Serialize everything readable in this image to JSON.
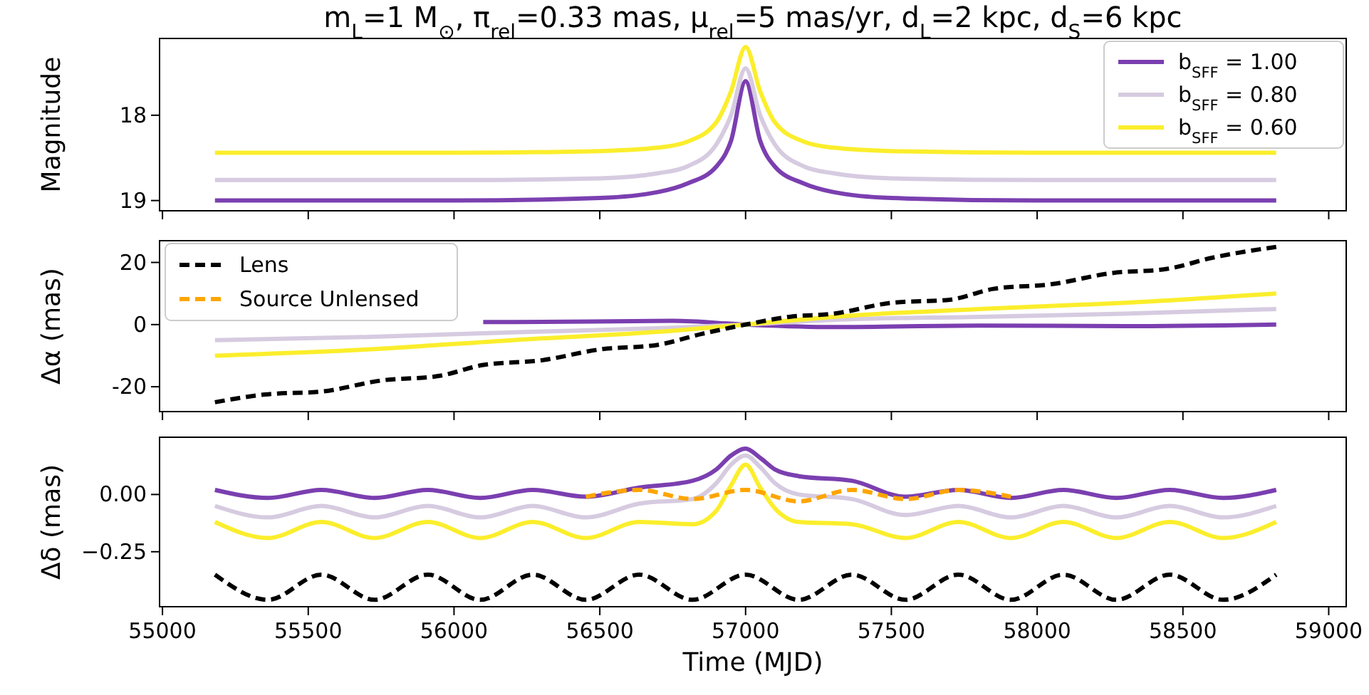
{
  "chart_data": [
    {
      "type": "line",
      "title": "m$_{L}$=1 M$_{⊙}$, π$_{rel}$=0.33 mas, μ$_{rel}$=5 mas/yr, d$_{L}$=2 kpc, d$_{S}$=6 kpc",
      "ylabel": "Magnitude",
      "xlim": [
        54990,
        59060
      ],
      "xticks": [
        55000,
        55500,
        56000,
        56500,
        57000,
        57500,
        58000,
        58500,
        59000
      ],
      "ylim": [
        19.12,
        17.1
      ],
      "yticks": [
        18,
        19
      ],
      "tick_labels": "y",
      "legend": "top right",
      "series": [
        {
          "name": "b$_{SFF}$ = 1.00",
          "color": "#7b3fb0",
          "x": [
            55180,
            56000,
            56500,
            56700,
            56800,
            56900,
            56950,
            57000,
            57050,
            57100,
            57200,
            57300,
            57500,
            58000,
            58820
          ],
          "values": [
            19.0,
            19.0,
            18.97,
            18.9,
            18.8,
            18.6,
            18.3,
            17.6,
            18.3,
            18.6,
            18.8,
            18.9,
            18.97,
            19.0,
            19.0
          ]
        },
        {
          "name": "b$_{SFF}$ = 0.80",
          "color": "#d6cbe0",
          "x": [
            55180,
            56000,
            56500,
            56700,
            56800,
            56900,
            56950,
            57000,
            57050,
            57100,
            57200,
            57300,
            57500,
            58000,
            58820
          ],
          "values": [
            18.76,
            18.76,
            18.74,
            18.68,
            18.6,
            18.34,
            18.0,
            17.45,
            18.0,
            18.34,
            18.6,
            18.68,
            18.74,
            18.76,
            18.76
          ]
        },
        {
          "name": "b$_{SFF}$ = 0.60",
          "color": "#fbee2c",
          "x": [
            55180,
            56000,
            56500,
            56700,
            56800,
            56900,
            56950,
            57000,
            57050,
            57100,
            57200,
            57300,
            57500,
            58000,
            58820
          ],
          "values": [
            18.44,
            18.44,
            18.42,
            18.38,
            18.31,
            18.08,
            17.72,
            17.2,
            17.72,
            18.08,
            18.31,
            18.38,
            18.42,
            18.44,
            18.44
          ]
        }
      ]
    },
    {
      "type": "line",
      "ylabel": "Δα (mas)",
      "xlim": [
        54990,
        59060
      ],
      "xticks": [
        55000,
        55500,
        56000,
        56500,
        57000,
        57500,
        58000,
        58500,
        59000
      ],
      "ylim": [
        -28,
        27
      ],
      "yticks": [
        -20,
        0,
        20
      ],
      "tick_labels": "y",
      "legend": "top left",
      "series": [
        {
          "color": "#7b3fb0",
          "x": [
            56100,
            56200,
            56750,
            57000,
            57300,
            57800,
            58300,
            58820
          ],
          "values": [
            0.8,
            0.8,
            1.2,
            0,
            -0.8,
            -0.3,
            -0.5,
            0
          ]
        },
        {
          "color": "#d6cbe0",
          "x": [
            55180,
            55700,
            56200,
            56750,
            57000,
            57300,
            57800,
            58300,
            58820
          ],
          "values": [
            -5,
            -4,
            -2.5,
            -1,
            0,
            1.5,
            2.5,
            3.5,
            5
          ]
        },
        {
          "color": "#fbee2c",
          "x": [
            55180,
            55700,
            56200,
            56750,
            57000,
            57300,
            57800,
            58300,
            58820
          ],
          "values": [
            -10,
            -8,
            -5,
            -2,
            0,
            2.5,
            5,
            7,
            10
          ]
        },
        {
          "name": "Lens",
          "color": "#000000",
          "line_style": "dashed",
          "x": [
            55180,
            55350,
            55550,
            55750,
            55950,
            56100,
            56300,
            56500,
            56700,
            56850,
            57000,
            57150,
            57300,
            57500,
            57700,
            57850,
            58050,
            58250,
            58450,
            58600,
            58820
          ],
          "values": [
            -25,
            -22.5,
            -21.5,
            -18,
            -16.5,
            -13,
            -11.5,
            -8,
            -6.5,
            -3,
            0,
            2.5,
            3.5,
            7,
            8,
            11.5,
            13,
            16.5,
            18,
            21.5,
            25
          ]
        },
        {
          "name": "Source Unlensed",
          "color": "#ffa500",
          "line_style": "dashed"
        }
      ]
    },
    {
      "type": "line",
      "ylabel": "Δδ (mas)",
      "xlabel": "Time (MJD)",
      "xlim": [
        54990,
        59060
      ],
      "xticks": [
        55000,
        55500,
        56000,
        56500,
        57000,
        57500,
        58000,
        58500,
        59000
      ],
      "ylim": [
        -0.49,
        0.25
      ],
      "yticks": [
        {
          "value": 0,
          "label": "0.00"
        },
        {
          "value": -0.25,
          "label": "−0.25"
        }
      ],
      "series": [
        {
          "color": "#7b3fb0",
          "x": [
            55180,
            55362,
            55545,
            55727,
            55910,
            56090,
            56270,
            56452,
            56635,
            56818,
            56900,
            56950,
            57000,
            57050,
            57100,
            57182,
            57365,
            57548,
            57730,
            57910,
            58090,
            58272,
            58455,
            58638,
            58820
          ],
          "values": [
            0.02,
            -0.015,
            0.02,
            -0.015,
            0.02,
            -0.015,
            0.02,
            -0.01,
            0.03,
            0.06,
            0.11,
            0.17,
            0.2,
            0.16,
            0.11,
            0.08,
            0.06,
            -0.01,
            0.02,
            -0.015,
            0.02,
            -0.015,
            0.02,
            -0.015,
            0.02
          ]
        },
        {
          "color": "#d6cbe0",
          "x": [
            55180,
            55362,
            55545,
            55727,
            55910,
            56090,
            56270,
            56452,
            56635,
            56818,
            56900,
            56950,
            57000,
            57050,
            57100,
            57182,
            57365,
            57548,
            57730,
            57910,
            58090,
            58272,
            58455,
            58638,
            58820
          ],
          "values": [
            -0.05,
            -0.1,
            -0.05,
            -0.1,
            -0.05,
            -0.1,
            -0.05,
            -0.1,
            -0.04,
            -0.02,
            0.05,
            0.13,
            0.17,
            0.12,
            0.05,
            0.0,
            -0.02,
            -0.09,
            -0.05,
            -0.1,
            -0.05,
            -0.1,
            -0.05,
            -0.1,
            -0.05
          ]
        },
        {
          "color": "#fbee2c",
          "x": [
            55180,
            55362,
            55545,
            55727,
            55910,
            56090,
            56270,
            56452,
            56635,
            56818,
            56900,
            56950,
            57000,
            57050,
            57100,
            57182,
            57365,
            57548,
            57730,
            57910,
            58090,
            58272,
            58455,
            58638,
            58820
          ],
          "values": [
            -0.12,
            -0.19,
            -0.12,
            -0.19,
            -0.12,
            -0.19,
            -0.12,
            -0.19,
            -0.12,
            -0.13,
            -0.07,
            0.04,
            0.13,
            0.03,
            -0.06,
            -0.12,
            -0.13,
            -0.19,
            -0.12,
            -0.19,
            -0.12,
            -0.19,
            -0.12,
            -0.19,
            -0.12
          ]
        },
        {
          "color": "#ffa500",
          "line_style": "dashed",
          "x": [
            56452,
            56635,
            56818,
            57000,
            57182,
            57365,
            57548,
            57730,
            57910
          ],
          "values": [
            -0.01,
            0.02,
            -0.02,
            0.02,
            -0.03,
            0.02,
            -0.02,
            0.02,
            -0.01
          ]
        },
        {
          "color": "#000000",
          "line_style": "dashed",
          "x": [
            55180,
            55362,
            55545,
            55727,
            55910,
            56090,
            56270,
            56452,
            56635,
            56818,
            57000,
            57182,
            57365,
            57548,
            57730,
            57910,
            58090,
            58272,
            58455,
            58638,
            58820
          ],
          "values": [
            -0.35,
            -0.46,
            -0.35,
            -0.46,
            -0.35,
            -0.46,
            -0.35,
            -0.46,
            -0.35,
            -0.46,
            -0.35,
            -0.46,
            -0.35,
            -0.46,
            -0.35,
            -0.46,
            -0.35,
            -0.46,
            -0.35,
            -0.46,
            -0.35
          ]
        }
      ]
    }
  ]
}
